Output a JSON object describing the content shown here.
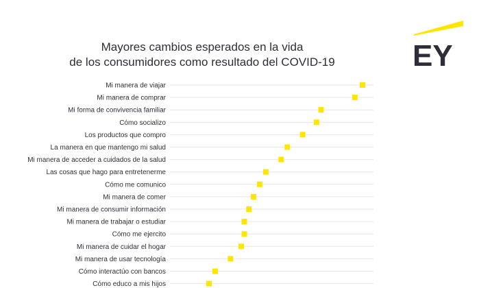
{
  "title": {
    "line1": "Mayores cambios esperados en la vida",
    "line2": "de los consumidores como resultado del COVID-19"
  },
  "logo": {
    "text": "EY",
    "accent_color": "#ffe600",
    "text_color": "#2e2e38"
  },
  "colors": {
    "marker": "#ffe600",
    "gridline": "#e6e6e6",
    "text": "#2e2e38"
  },
  "chart_data": {
    "type": "scatter",
    "orientation": "horizontal",
    "title": "Mayores cambios esperados en la vida de los consumidores como resultado del COVID-19",
    "categories": [
      "Mi manera de viajar",
      "Mi manera de comprar",
      "Mi forma de convivencia familiar",
      "Cómo socializo",
      "Los productos que compro",
      "La manera en que mantengo mi salud",
      "Mi manera de acceder a cuidados de la salud",
      "Las cosas que hago para entretenerme",
      "Cómo me comunico",
      "Mi manera de comer",
      "Mi manera de consumir información",
      "Mi manera de trabajar o estudiar",
      "Cómo me ejercito",
      "Mi manera de cuidar el hogar",
      "Mi manera de usar tecnología",
      "Cómo interactúo con bancos",
      "Cómo educo a mis hijos"
    ],
    "values": [
      100,
      95,
      73,
      70,
      61,
      51,
      47,
      37,
      33,
      29,
      26,
      23,
      23,
      21,
      14,
      4,
      0
    ],
    "xlim": [
      0,
      100
    ],
    "value_axis_visible": false,
    "grid": true,
    "marker_color": "#ffe600"
  }
}
